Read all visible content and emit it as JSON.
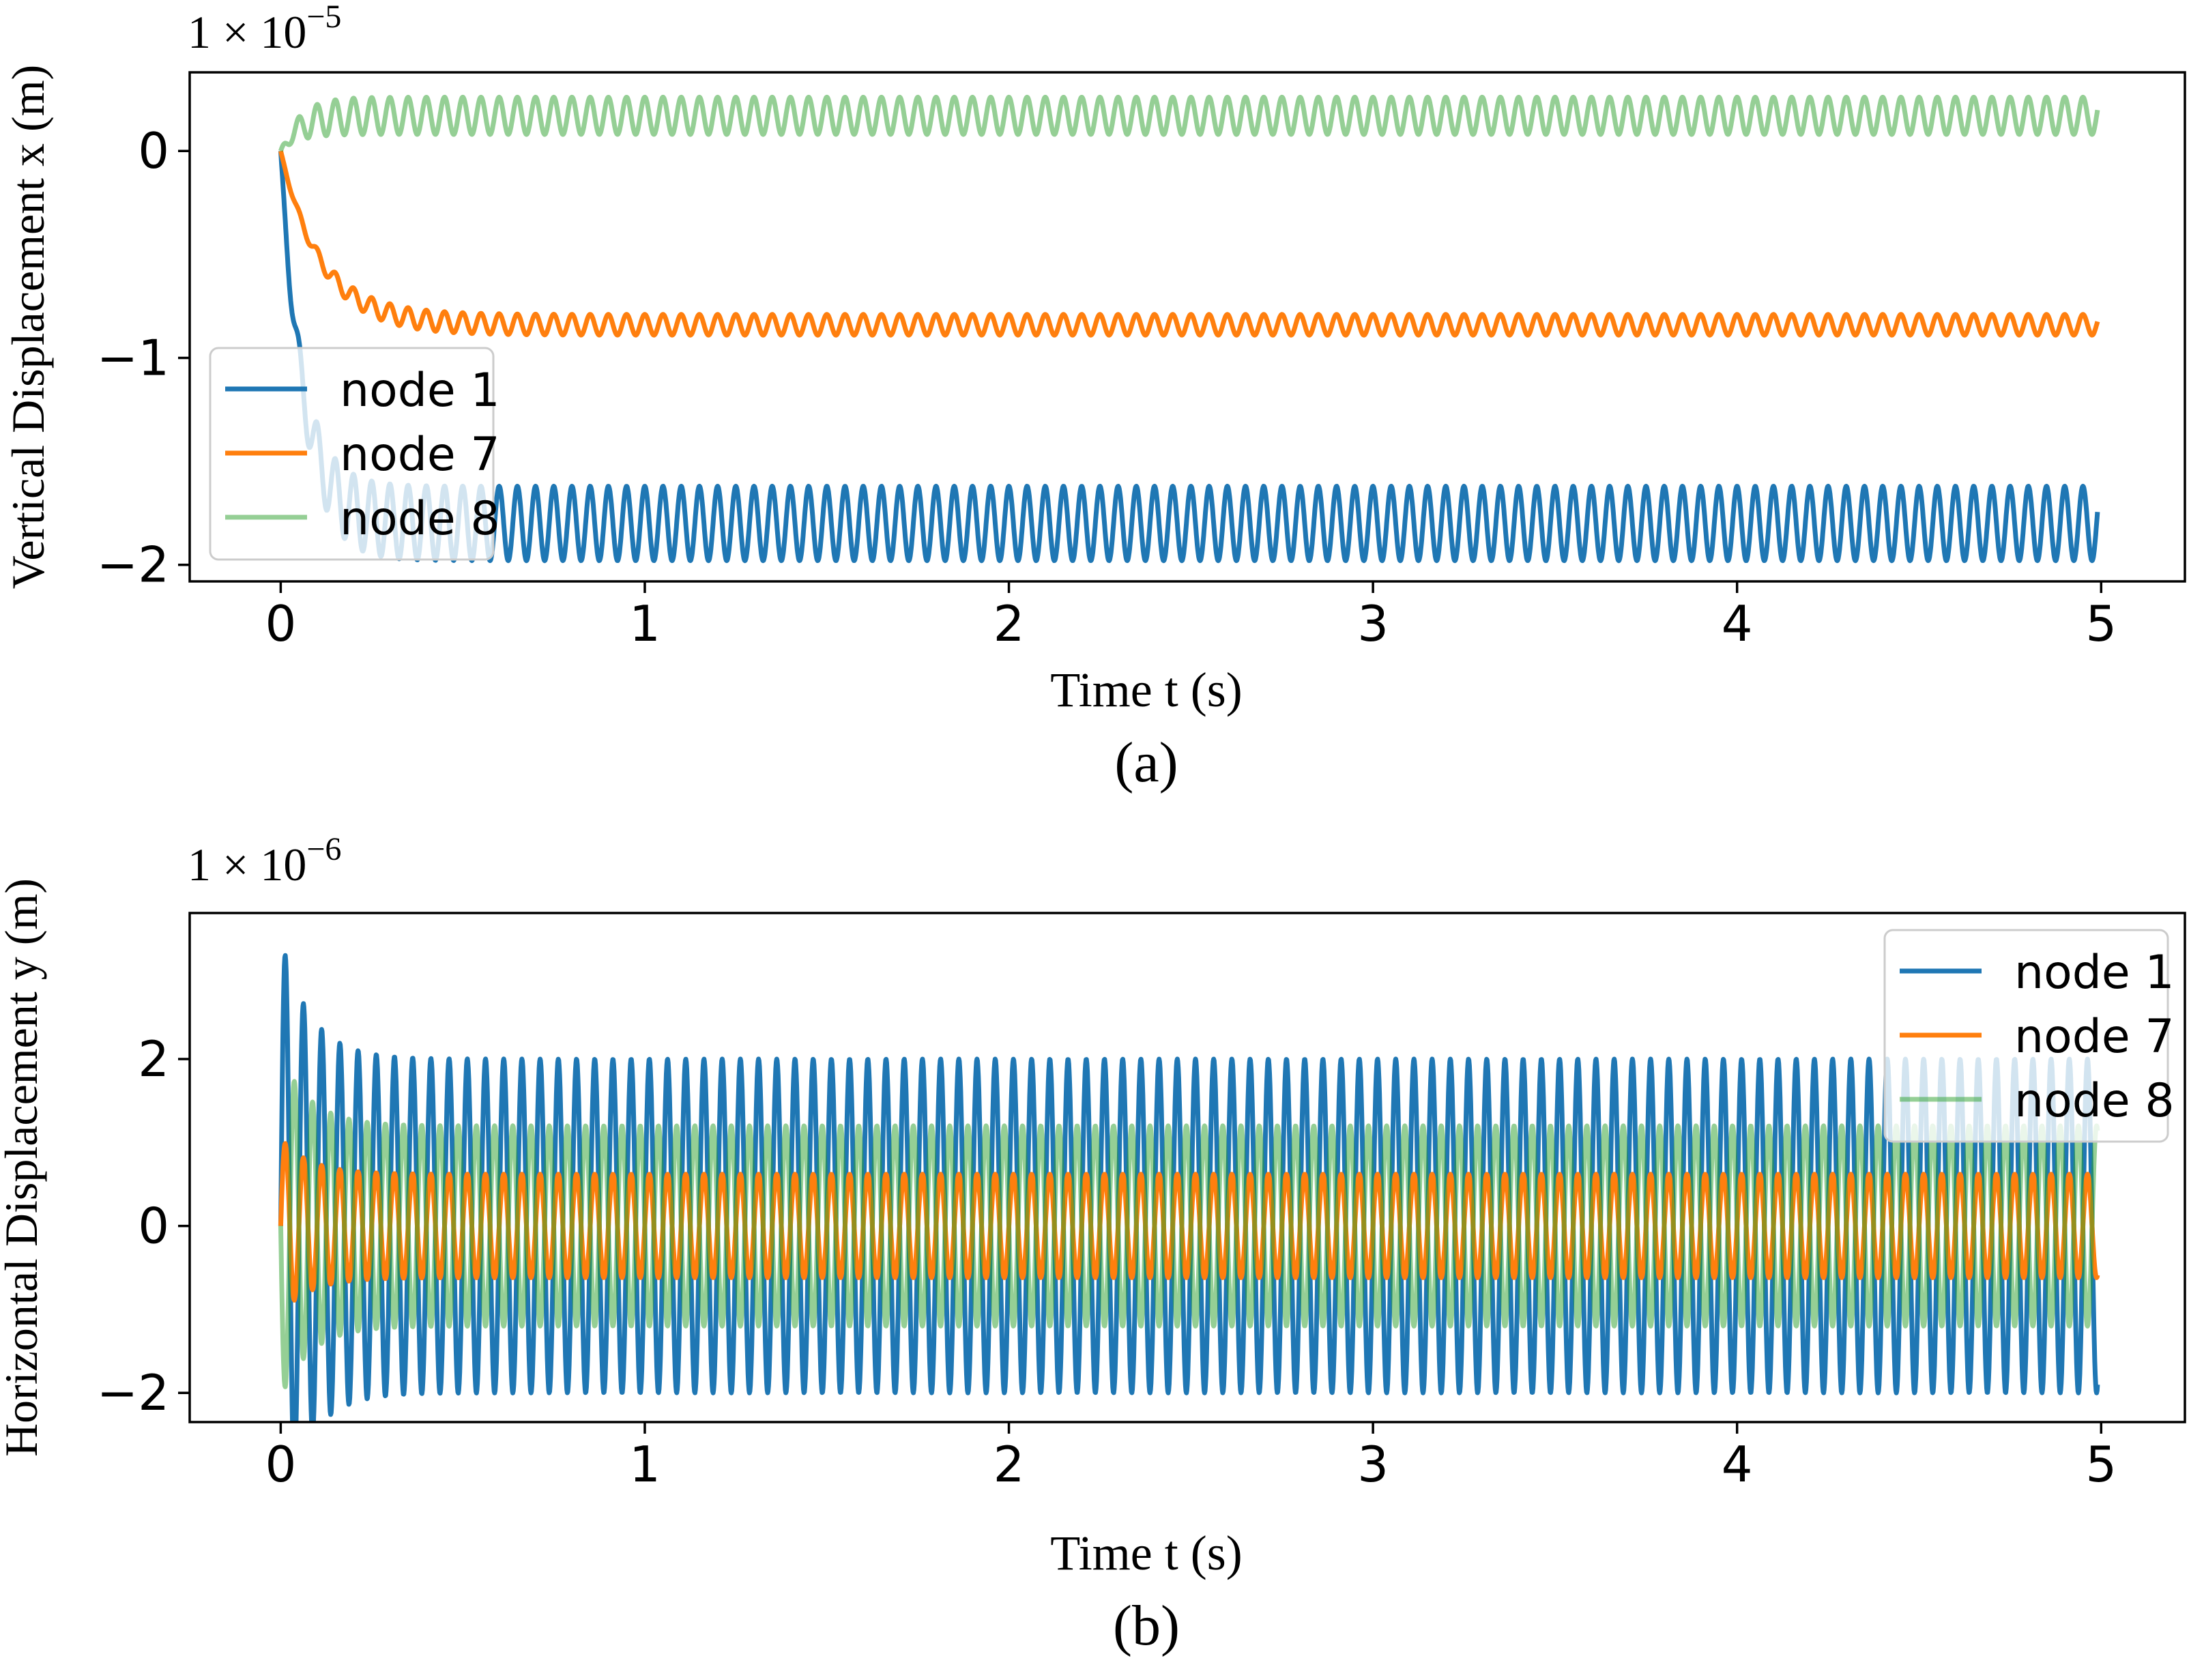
{
  "chart_data": [
    {
      "panel_label": "(a)",
      "type": "line",
      "xlabel": "Time t (s)",
      "ylabel": "Vertical Displacement x (m)",
      "y_scale_text": "1 × 10",
      "y_scale_exponent": "−5",
      "xlim": [
        -0.25,
        5.23
      ],
      "ylim": [
        -2.08,
        0.38
      ],
      "xticks": [
        0,
        1,
        2,
        3,
        4,
        5
      ],
      "xtick_labels": [
        "0",
        "1",
        "2",
        "3",
        "4",
        "5"
      ],
      "yticks": [
        0,
        -1,
        -2
      ],
      "ytick_labels": [
        "0",
        "−1",
        "−2"
      ],
      "legend": {
        "position": "lower-left"
      },
      "series": [
        {
          "name": "node 1",
          "color": "#1f77b4",
          "opacity": 1,
          "t_end": 4.99,
          "steady_mean": -1.8,
          "steady_amplitude": 0.18,
          "initial": 0.0,
          "settle_time": 0.06,
          "frequency_hz": 20
        },
        {
          "name": "node 7",
          "color": "#ff7f0e",
          "opacity": 1,
          "t_end": 4.99,
          "steady_mean": -0.84,
          "steady_amplitude": 0.05,
          "initial": 0.0,
          "settle_time": 0.11,
          "frequency_hz": 20
        },
        {
          "name": "node 8",
          "color": "#2ca02c",
          "opacity": 0.5,
          "t_end": 4.99,
          "steady_mean": 0.17,
          "steady_amplitude": 0.09,
          "initial": 0.0,
          "settle_time": 0.05,
          "frequency_hz": 20
        }
      ]
    },
    {
      "panel_label": "(b)",
      "type": "line",
      "xlabel": "Time t (s)",
      "ylabel": "Horizontal Displacement y (m)",
      "y_scale_text": "1 × 10",
      "y_scale_exponent": "−6",
      "xlim": [
        -0.25,
        5.23
      ],
      "ylim": [
        -2.35,
        3.75
      ],
      "xticks": [
        0,
        1,
        2,
        3,
        4,
        5
      ],
      "xtick_labels": [
        "0",
        "1",
        "2",
        "3",
        "4",
        "5"
      ],
      "yticks": [
        2,
        0,
        -2
      ],
      "ytick_labels": [
        "2",
        "0",
        "−2"
      ],
      "legend": {
        "position": "upper-right"
      },
      "series": [
        {
          "name": "node 1",
          "color": "#1f77b4",
          "opacity": 1,
          "t_end": 4.99,
          "steady_amplitude": 2.0,
          "peak": 3.45,
          "decay_time": 0.08,
          "sign": 1,
          "frequency_hz": 20
        },
        {
          "name": "node 7",
          "color": "#ff7f0e",
          "opacity": 1,
          "t_end": 4.99,
          "steady_amplitude": 0.62,
          "peak": 1.05,
          "decay_time": 0.08,
          "sign": 1,
          "frequency_hz": 20
        },
        {
          "name": "node 8",
          "color": "#2ca02c",
          "opacity": 0.5,
          "t_end": 4.99,
          "steady_amplitude": 1.2,
          "peak": 2.05,
          "decay_time": 0.08,
          "sign": -1,
          "frequency_hz": 20
        }
      ]
    }
  ]
}
